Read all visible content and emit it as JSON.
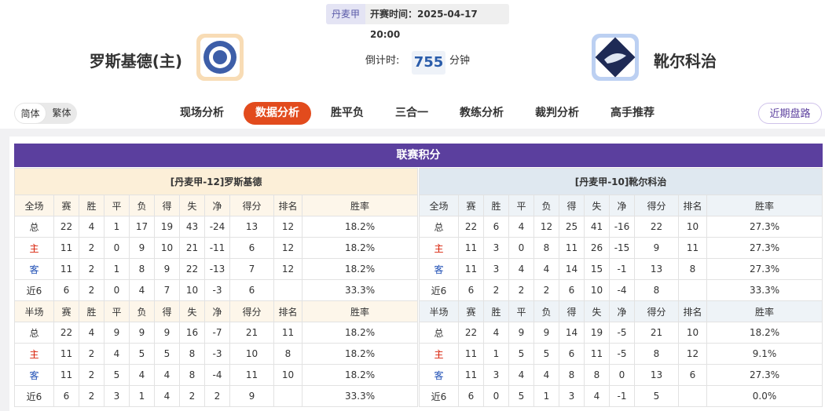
{
  "header": {
    "league": "丹麦甲",
    "time_label": "开赛时间：",
    "time": "2025-04-17 20:00",
    "home_team": "罗斯基德(主)",
    "away_team": "靴尔科治",
    "countdown_label": "倒计时:",
    "countdown": "755",
    "countdown_unit": "分钟"
  },
  "nav": {
    "lang": [
      "简体",
      "繁体"
    ],
    "tabs": [
      "现场分析",
      "数据分析",
      "胜平负",
      "三合一",
      "教练分析",
      "裁判分析",
      "高手推荐"
    ],
    "button": "近期盘路"
  },
  "standings": {
    "title": "联赛积分",
    "teams": [
      {
        "title": "[丹麦甲-12]罗斯基德",
        "tables": [
          {
            "header": [
              "全场",
              "赛",
              "胜",
              "平",
              "负",
              "得",
              "失",
              "净",
              "得分",
              "排名",
              "胜率"
            ],
            "rows": [
              [
                "总",
                "22",
                "4",
                "1",
                "17",
                "19",
                "43",
                "-24",
                "13",
                "12",
                "18.2%"
              ],
              [
                "主",
                "11",
                "2",
                "0",
                "9",
                "10",
                "21",
                "-11",
                "6",
                "12",
                "18.2%"
              ],
              [
                "客",
                "11",
                "2",
                "1",
                "8",
                "9",
                "22",
                "-13",
                "7",
                "12",
                "18.2%"
              ],
              [
                "近6",
                "6",
                "2",
                "0",
                "4",
                "7",
                "10",
                "-3",
                "6",
                null,
                "33.3%"
              ]
            ]
          },
          {
            "header": [
              "半场",
              "赛",
              "胜",
              "平",
              "负",
              "得",
              "失",
              "净",
              "得分",
              "排名",
              "胜率"
            ],
            "rows": [
              [
                "总",
                "22",
                "4",
                "9",
                "9",
                "9",
                "16",
                "-7",
                "21",
                "11",
                "18.2%"
              ],
              [
                "主",
                "11",
                "2",
                "4",
                "5",
                "5",
                "8",
                "-3",
                "10",
                "8",
                "18.2%"
              ],
              [
                "客",
                "11",
                "2",
                "5",
                "4",
                "4",
                "8",
                "-4",
                "11",
                "10",
                "18.2%"
              ],
              [
                "近6",
                "6",
                "2",
                "3",
                "1",
                "4",
                "2",
                "2",
                "9",
                null,
                "33.3%"
              ]
            ]
          }
        ]
      },
      {
        "title": "[丹麦甲-10]靴尔科治",
        "tables": [
          {
            "header": [
              "全场",
              "赛",
              "胜",
              "平",
              "负",
              "得",
              "失",
              "净",
              "得分",
              "排名",
              "胜率"
            ],
            "rows": [
              [
                "总",
                "22",
                "6",
                "4",
                "12",
                "25",
                "41",
                "-16",
                "22",
                "10",
                "27.3%"
              ],
              [
                "主",
                "11",
                "3",
                "0",
                "8",
                "11",
                "26",
                "-15",
                "9",
                "11",
                "27.3%"
              ],
              [
                "客",
                "11",
                "3",
                "4",
                "4",
                "14",
                "15",
                "-1",
                "13",
                "8",
                "27.3%"
              ],
              [
                "近6",
                "6",
                "2",
                "2",
                "2",
                "6",
                "10",
                "-4",
                "8",
                null,
                "33.3%"
              ]
            ]
          },
          {
            "header": [
              "半场",
              "赛",
              "胜",
              "平",
              "负",
              "得",
              "失",
              "净",
              "得分",
              "排名",
              "胜率"
            ],
            "rows": [
              [
                "总",
                "22",
                "4",
                "9",
                "9",
                "14",
                "19",
                "-5",
                "21",
                "10",
                "18.2%"
              ],
              [
                "主",
                "11",
                "1",
                "5",
                "5",
                "6",
                "11",
                "-5",
                "8",
                "12",
                "9.1%"
              ],
              [
                "客",
                "11",
                "3",
                "4",
                "4",
                "8",
                "8",
                "0",
                "13",
                "6",
                "27.3%"
              ],
              [
                "近6",
                "6",
                "0",
                "5",
                "1",
                "3",
                "4",
                "-1",
                "5",
                null,
                "0.0%"
              ]
            ]
          }
        ]
      }
    ]
  }
}
